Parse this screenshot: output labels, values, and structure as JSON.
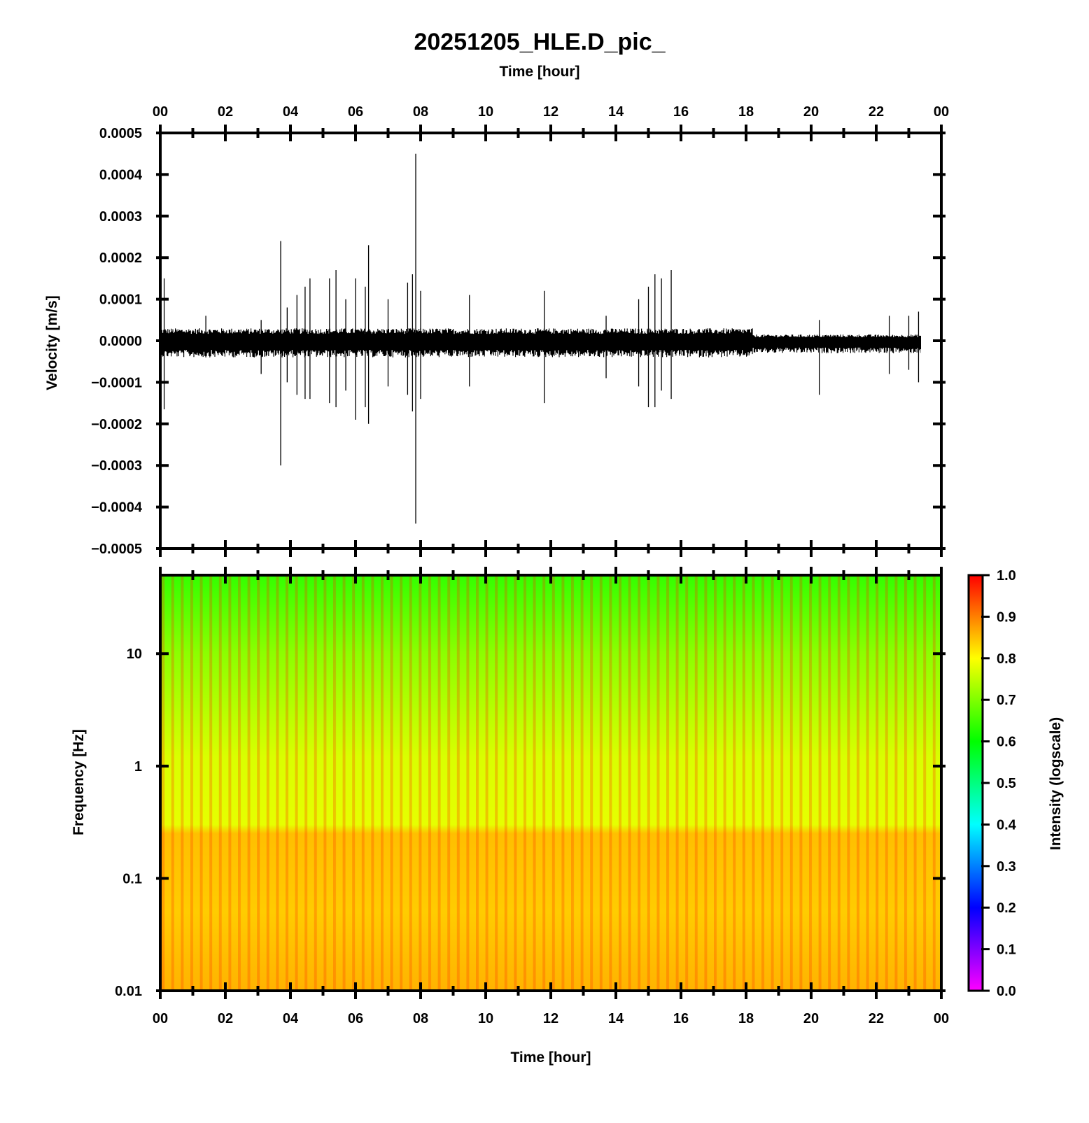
{
  "chart_data": [
    {
      "type": "line",
      "title": "20251205_HLE.D_pic_",
      "xlabel": "Time [hour]",
      "ylabel": "Velocity [m/s]",
      "xlim": [
        0,
        24
      ],
      "ylim": [
        -0.0005,
        0.0005
      ],
      "x_tick_labels": [
        "00",
        "02",
        "04",
        "06",
        "08",
        "10",
        "12",
        "14",
        "16",
        "18",
        "20",
        "22",
        "00"
      ],
      "y_ticks": [
        -0.0005,
        -0.0004,
        -0.0003,
        -0.0002,
        -0.0001,
        0.0,
        0.0001,
        0.0002,
        0.0003,
        0.0004,
        0.0005
      ],
      "y_tick_labels": [
        "−0.0005",
        "−0.0004",
        "−0.0003",
        "−0.0002",
        "−0.0001",
        "0.0000",
        "0.0001",
        "0.0002",
        "0.0003",
        "0.0004",
        "0.0005"
      ],
      "series": [
        {
          "color": "#000000",
          "noise_envelope": [
            {
              "x_start": 0,
              "x_end": 18.2,
              "upper": 3e-05,
              "lower": -4e-05
            },
            {
              "x_start": 18.2,
              "x_end": 24,
              "upper": 1.5e-05,
              "lower": -3e-05
            }
          ],
          "spikes": [
            {
              "x": 0.12,
              "max": 0.00015,
              "min": -0.000165
            },
            {
              "x": 1.4,
              "max": 6e-05,
              "min": -4e-05
            },
            {
              "x": 3.1,
              "max": 5e-05,
              "min": -8e-05
            },
            {
              "x": 3.7,
              "max": 0.00024,
              "min": -0.0003
            },
            {
              "x": 3.9,
              "max": 8e-05,
              "min": -0.0001
            },
            {
              "x": 4.2,
              "max": 0.00011,
              "min": -0.00013
            },
            {
              "x": 4.45,
              "max": 0.00013,
              "min": -0.00014
            },
            {
              "x": 4.6,
              "max": 0.00015,
              "min": -0.00014
            },
            {
              "x": 5.2,
              "max": 0.00015,
              "min": -0.00015
            },
            {
              "x": 5.4,
              "max": 0.00017,
              "min": -0.00016
            },
            {
              "x": 5.7,
              "max": 0.0001,
              "min": -0.00012
            },
            {
              "x": 6.0,
              "max": 0.00015,
              "min": -0.00019
            },
            {
              "x": 6.3,
              "max": 0.00013,
              "min": -0.00016
            },
            {
              "x": 6.4,
              "max": 0.00023,
              "min": -0.0002
            },
            {
              "x": 7.0,
              "max": 0.0001,
              "min": -0.00011
            },
            {
              "x": 7.6,
              "max": 0.00014,
              "min": -0.00013
            },
            {
              "x": 7.75,
              "max": 0.00016,
              "min": -0.00017
            },
            {
              "x": 7.85,
              "max": 0.00045,
              "min": -0.00044
            },
            {
              "x": 8.0,
              "max": 0.00012,
              "min": -0.00014
            },
            {
              "x": 9.5,
              "max": 0.00011,
              "min": -0.00011
            },
            {
              "x": 11.8,
              "max": 0.00012,
              "min": -0.00015
            },
            {
              "x": 13.7,
              "max": 6e-05,
              "min": -9e-05
            },
            {
              "x": 14.7,
              "max": 0.0001,
              "min": -0.00011
            },
            {
              "x": 15.0,
              "max": 0.00013,
              "min": -0.00016
            },
            {
              "x": 15.2,
              "max": 0.00016,
              "min": -0.00016
            },
            {
              "x": 15.4,
              "max": 0.00015,
              "min": -0.00012
            },
            {
              "x": 15.7,
              "max": 0.00017,
              "min": -0.00014
            },
            {
              "x": 20.25,
              "max": 5e-05,
              "min": -0.00013
            },
            {
              "x": 22.4,
              "max": 6e-05,
              "min": -8e-05
            },
            {
              "x": 23.0,
              "max": 6e-05,
              "min": -7e-05
            },
            {
              "x": 23.3,
              "max": 7e-05,
              "min": -0.0001
            },
            {
              "x": 23.5,
              "max": 8e-05,
              "min": -0.00012
            },
            {
              "x": 23.65,
              "max": 7e-05,
              "min": -0.0001
            }
          ]
        }
      ]
    },
    {
      "type": "heatmap",
      "xlabel": "Time [hour]",
      "ylabel": "Frequency [Hz]",
      "xlim": [
        0,
        24
      ],
      "ylim": [
        0.01,
        50
      ],
      "yscale": "log",
      "x_tick_labels": [
        "00",
        "02",
        "04",
        "06",
        "08",
        "10",
        "12",
        "14",
        "16",
        "18",
        "20",
        "22",
        "00"
      ],
      "y_ticks": [
        0.01,
        0.1,
        1,
        10
      ],
      "y_tick_labels": [
        "0.01",
        "0.1",
        "1",
        "10"
      ],
      "colormap": [
        "#ff00ff",
        "#0000ff",
        "#00ffff",
        "#00ff00",
        "#ffff00",
        "#ff0000"
      ],
      "intensity_profile": [
        {
          "freq": 0.01,
          "value": 0.86
        },
        {
          "freq": 0.05,
          "value": 0.84
        },
        {
          "freq": 0.25,
          "value": 0.85
        },
        {
          "freq": 0.3,
          "value": 0.78
        },
        {
          "freq": 1.2,
          "value": 0.77
        },
        {
          "freq": 10,
          "value": 0.71
        },
        {
          "freq": 50,
          "value": 0.64
        }
      ],
      "colorbar": {
        "label": "Intensity (logscale)",
        "range": [
          0.0,
          1.0
        ],
        "tick_labels": [
          "0.0",
          "0.1",
          "0.2",
          "0.3",
          "0.4",
          "0.5",
          "0.6",
          "0.7",
          "0.8",
          "0.9",
          "1.0"
        ]
      }
    }
  ]
}
